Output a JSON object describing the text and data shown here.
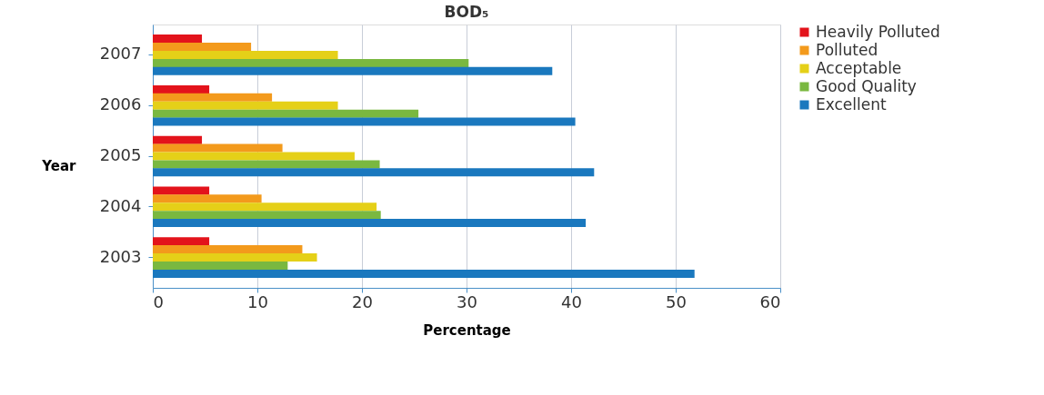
{
  "chart_data": {
    "type": "bar",
    "orientation": "horizontal",
    "title": "BOD₅",
    "xlabel": "Percentage",
    "ylabel": "Year",
    "categories": [
      "2007",
      "2006",
      "2005",
      "2004",
      "2003"
    ],
    "series": [
      {
        "name": "Heavily Polluted",
        "color": "#e3131b",
        "values": [
          4.7,
          5.4,
          4.7,
          5.4,
          5.4
        ]
      },
      {
        "name": "Polluted",
        "color": "#f39a1c",
        "values": [
          9.4,
          11.4,
          12.4,
          10.4,
          14.3
        ]
      },
      {
        "name": "Acceptable",
        "color": "#e5d018",
        "values": [
          17.7,
          17.7,
          19.3,
          21.4,
          15.7
        ]
      },
      {
        "name": "Good Quality",
        "color": "#7ab840",
        "values": [
          30.2,
          25.4,
          21.7,
          21.8,
          12.9
        ]
      },
      {
        "name": "Excellent",
        "color": "#1a78be",
        "values": [
          38.2,
          40.4,
          42.2,
          41.4,
          51.8
        ]
      }
    ],
    "xlim": [
      0,
      60
    ],
    "xticks": [
      0,
      10,
      20,
      30,
      40,
      50,
      60
    ],
    "grid": "x",
    "legend": "right"
  }
}
